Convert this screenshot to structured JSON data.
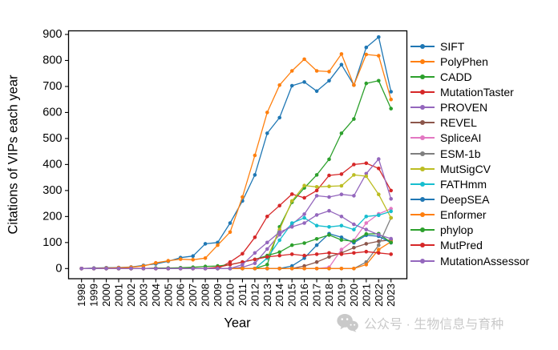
{
  "watermark": {
    "text": "公众号 · 生物信息与育种",
    "icon": "wechat-icon",
    "color": "#c9c9c9"
  },
  "chart_data": {
    "type": "line",
    "title": "",
    "xlabel": "Year",
    "ylabel": "Citations of VIPs each year",
    "legend_position": "right",
    "grid": false,
    "ylim": [
      0,
      900
    ],
    "y_ticks": [
      900,
      800,
      700,
      600,
      500,
      400,
      300,
      200,
      100,
      0
    ],
    "x": [
      1998,
      1999,
      2000,
      2001,
      2002,
      2003,
      2004,
      2005,
      2006,
      2007,
      2008,
      2009,
      2010,
      2011,
      2012,
      2013,
      2014,
      2015,
      2016,
      2017,
      2018,
      2019,
      2020,
      2021,
      2022,
      2023
    ],
    "series": [
      {
        "name": "SIFT",
        "color": "#1f77b4",
        "values": [
          0,
          2,
          3,
          4,
          6,
          12,
          18,
          28,
          42,
          48,
          95,
          100,
          175,
          260,
          360,
          520,
          580,
          703,
          717,
          682,
          722,
          784,
          705,
          850,
          890,
          680
        ]
      },
      {
        "name": "PolyPhen",
        "color": "#ff7f0e",
        "values": [
          0,
          1,
          2,
          3,
          5,
          10,
          22,
          30,
          36,
          34,
          40,
          90,
          140,
          275,
          435,
          600,
          705,
          760,
          805,
          760,
          757,
          825,
          705,
          823,
          818,
          650
        ]
      },
      {
        "name": "CADD",
        "color": "#2ca02c",
        "values": [
          0,
          0,
          0,
          0,
          0,
          0,
          0,
          0,
          0,
          0,
          0,
          0,
          0,
          0,
          0,
          15,
          160,
          255,
          310,
          360,
          420,
          520,
          575,
          712,
          722,
          615
        ]
      },
      {
        "name": "MutationTaster",
        "color": "#d62728",
        "values": [
          0,
          0,
          0,
          0,
          0,
          0,
          0,
          0,
          0,
          0,
          0,
          0,
          25,
          57,
          120,
          200,
          242,
          286,
          272,
          300,
          358,
          363,
          400,
          405,
          385,
          300
        ]
      },
      {
        "name": "PROVEN",
        "color": "#9467bd",
        "values": [
          0,
          0,
          0,
          0,
          0,
          0,
          0,
          0,
          0,
          0,
          0,
          0,
          0,
          5,
          20,
          75,
          130,
          170,
          209,
          280,
          275,
          285,
          280,
          365,
          421,
          268
        ]
      },
      {
        "name": "REVEL",
        "color": "#8c564b",
        "values": [
          0,
          0,
          0,
          0,
          0,
          0,
          0,
          0,
          0,
          0,
          0,
          0,
          0,
          0,
          0,
          0,
          0,
          0,
          10,
          25,
          45,
          60,
          80,
          95,
          105,
          110
        ]
      },
      {
        "name": "SpliceAI",
        "color": "#e377c2",
        "values": [
          0,
          0,
          0,
          0,
          0,
          0,
          0,
          0,
          0,
          0,
          0,
          0,
          0,
          0,
          0,
          0,
          0,
          0,
          0,
          0,
          5,
          73,
          109,
          175,
          210,
          230
        ]
      },
      {
        "name": "ESM-1b",
        "color": "#7f7f7f",
        "values": [
          0,
          0,
          0,
          0,
          0,
          0,
          0,
          0,
          0,
          0,
          0,
          0,
          0,
          0,
          0,
          0,
          0,
          0,
          0,
          0,
          0,
          0,
          0,
          25,
          90,
          195
        ]
      },
      {
        "name": "MutSigCV",
        "color": "#bcbd22",
        "values": [
          0,
          0,
          0,
          0,
          0,
          0,
          0,
          0,
          0,
          0,
          0,
          0,
          0,
          0,
          0,
          40,
          150,
          260,
          319,
          314,
          316,
          318,
          360,
          355,
          285,
          195
        ]
      },
      {
        "name": "FATHmm",
        "color": "#17becf",
        "values": [
          0,
          0,
          0,
          0,
          0,
          0,
          0,
          0,
          0,
          0,
          0,
          0,
          0,
          0,
          0,
          40,
          109,
          175,
          195,
          165,
          160,
          165,
          150,
          200,
          205,
          220
        ]
      },
      {
        "name": "DeepSEA",
        "color": "#1f77b4",
        "values": [
          0,
          0,
          0,
          0,
          0,
          0,
          0,
          0,
          0,
          0,
          0,
          0,
          0,
          0,
          0,
          0,
          0,
          10,
          40,
          90,
          134,
          120,
          99,
          128,
          124,
          99
        ]
      },
      {
        "name": "Enformer",
        "color": "#ff7f0e",
        "values": [
          0,
          0,
          0,
          0,
          0,
          0,
          0,
          0,
          0,
          0,
          0,
          0,
          0,
          0,
          0,
          0,
          0,
          0,
          0,
          0,
          0,
          0,
          0,
          15,
          73,
          103
        ]
      },
      {
        "name": "phylop",
        "color": "#2ca02c",
        "values": [
          0,
          0,
          0,
          0,
          0,
          0,
          2,
          2,
          3,
          5,
          8,
          10,
          15,
          25,
          35,
          50,
          63,
          90,
          98,
          114,
          129,
          110,
          105,
          133,
          134,
          100
        ]
      },
      {
        "name": "MutPred",
        "color": "#d62728",
        "values": [
          0,
          0,
          0,
          0,
          0,
          0,
          0,
          0,
          0,
          0,
          0,
          5,
          15,
          25,
          35,
          45,
          50,
          55,
          50,
          55,
          60,
          55,
          60,
          65,
          60,
          55
        ]
      },
      {
        "name": "MutationAssessor",
        "color": "#9467bd",
        "values": [
          0,
          0,
          0,
          0,
          0,
          0,
          0,
          0,
          0,
          0,
          0,
          0,
          0,
          15,
          60,
          100,
          140,
          160,
          175,
          206,
          222,
          200,
          170,
          150,
          130,
          115
        ]
      }
    ]
  }
}
